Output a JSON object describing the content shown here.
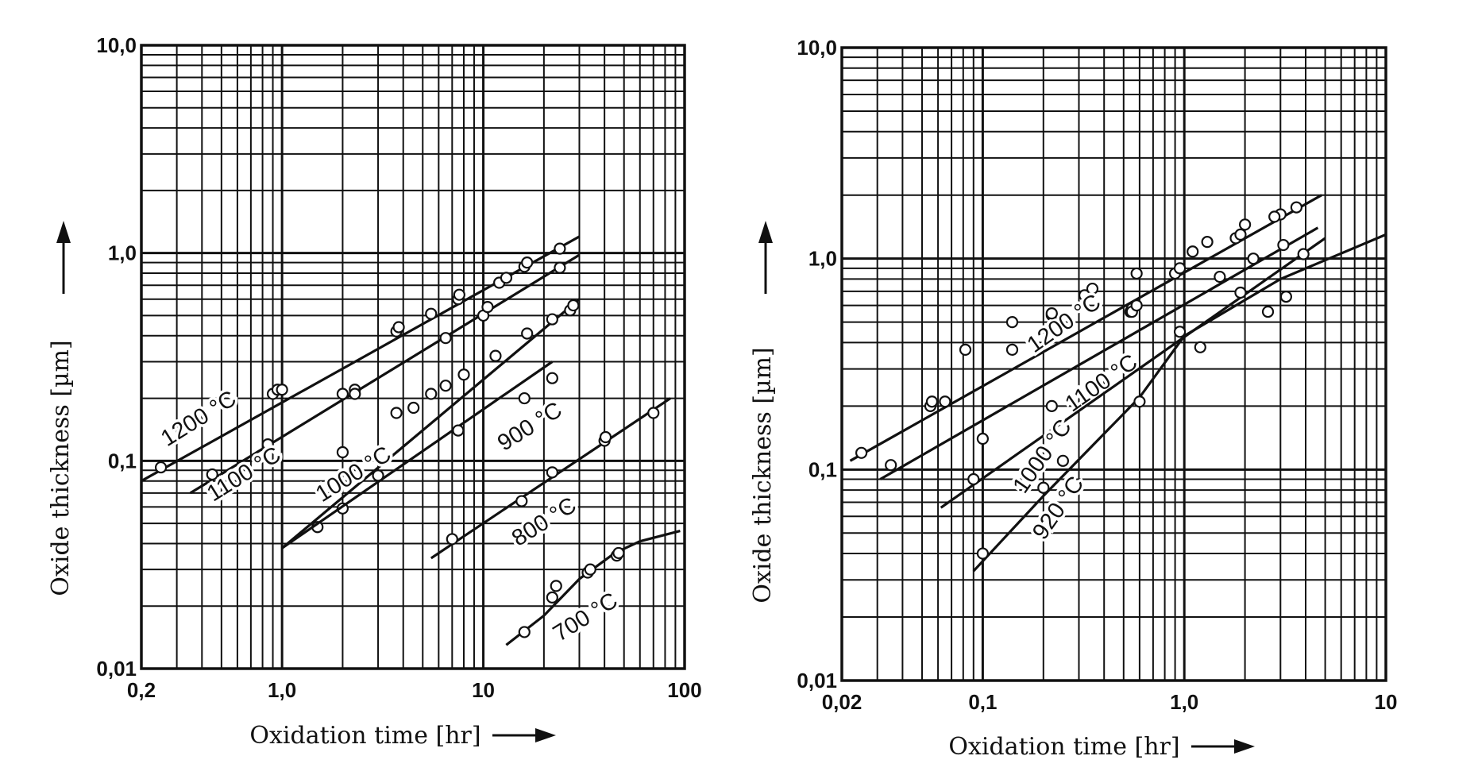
{
  "chart_data": [
    {
      "type": "line",
      "xscale": "log",
      "yscale": "log",
      "xlim": [
        0.2,
        100
      ],
      "ylim": [
        0.01,
        10
      ],
      "grid": true,
      "xlabel": "Oxidation time [hr]",
      "ylabel": "Oxide thickness [µm]",
      "xticks": [
        {
          "value": 0.2,
          "label": "0,2"
        },
        {
          "value": 1,
          "label": "1,0"
        },
        {
          "value": 10,
          "label": "10"
        },
        {
          "value": 100,
          "label": "100"
        }
      ],
      "yticks": [
        {
          "value": 0.01,
          "label": "0,01"
        },
        {
          "value": 0.1,
          "label": "0,1"
        },
        {
          "value": 1,
          "label": "1,0"
        },
        {
          "value": 10,
          "label": "10,0"
        }
      ],
      "series": [
        {
          "name": "1200 °C",
          "line": [
            [
              0.2,
              0.08
            ],
            [
              30,
              1.2
            ]
          ],
          "points": [
            [
              0.25,
              0.093
            ],
            [
              0.9,
              0.21
            ],
            [
              0.95,
              0.22
            ],
            [
              2.3,
              0.22
            ],
            [
              3.7,
              0.42
            ],
            [
              3.8,
              0.44
            ],
            [
              5.5,
              0.51
            ],
            [
              7.5,
              0.6
            ],
            [
              7.6,
              0.63
            ],
            [
              12,
              0.72
            ],
            [
              13,
              0.76
            ],
            [
              16,
              0.86
            ],
            [
              16.5,
              0.9
            ],
            [
              24,
              1.05
            ]
          ]
        },
        {
          "name": "1100 °C",
          "line": [
            [
              0.35,
              0.07
            ],
            [
              30,
              0.98
            ]
          ],
          "points": [
            [
              0.45,
              0.086
            ],
            [
              0.85,
              0.12
            ],
            [
              1.0,
              0.22
            ],
            [
              2.0,
              0.21
            ],
            [
              2.3,
              0.21
            ],
            [
              6.5,
              0.39
            ],
            [
              10,
              0.5
            ],
            [
              10.5,
              0.55
            ],
            [
              24,
              0.85
            ]
          ]
        },
        {
          "name": "1000 °C",
          "line": [
            [
              1.0,
              0.038
            ],
            [
              30,
              0.6
            ]
          ],
          "points": [
            [
              1.5,
              0.048
            ],
            [
              2.0,
              0.059
            ],
            [
              2.0,
              0.11
            ],
            [
              3.7,
              0.17
            ],
            [
              4.5,
              0.18
            ],
            [
              5.5,
              0.21
            ],
            [
              6.5,
              0.23
            ],
            [
              8.0,
              0.26
            ],
            [
              11.5,
              0.32
            ],
            [
              16.5,
              0.41
            ],
            [
              22,
              0.48
            ],
            [
              27,
              0.53
            ],
            [
              28,
              0.56
            ]
          ]
        },
        {
          "name": "900 °C",
          "line": [
            [
              1.0,
              0.038
            ],
            [
              22,
              0.3
            ]
          ],
          "points": [
            [
              3.0,
              0.085
            ],
            [
              7.5,
              0.14
            ],
            [
              16,
              0.2
            ],
            [
              22,
              0.25
            ]
          ]
        },
        {
          "name": "800 °C",
          "line": [
            [
              5.5,
              0.034
            ],
            [
              85,
              0.2
            ]
          ],
          "points": [
            [
              7.0,
              0.042
            ],
            [
              15.5,
              0.064
            ],
            [
              22,
              0.088
            ],
            [
              40,
              0.125
            ],
            [
              40.5,
              0.13
            ],
            [
              70,
              0.17
            ]
          ]
        },
        {
          "name": "700 °C",
          "line": [
            [
              13,
              0.013
            ],
            [
              20,
              0.018
            ],
            [
              30,
              0.027
            ],
            [
              45,
              0.036
            ],
            [
              60,
              0.041
            ],
            [
              95,
              0.046
            ]
          ],
          "points": [
            [
              16,
              0.015
            ],
            [
              22,
              0.022
            ],
            [
              23,
              0.025
            ],
            [
              33,
              0.029
            ],
            [
              34,
              0.03
            ],
            [
              46,
              0.035
            ],
            [
              47,
              0.036
            ]
          ]
        }
      ]
    },
    {
      "type": "line",
      "xscale": "log",
      "yscale": "log",
      "xlim": [
        0.02,
        10
      ],
      "ylim": [
        0.01,
        10
      ],
      "grid": true,
      "xlabel": "Oxidation time [hr]",
      "ylabel": "Oxide thickness [µm]",
      "xticks": [
        {
          "value": 0.02,
          "label": "0,02"
        },
        {
          "value": 0.1,
          "label": "0,1"
        },
        {
          "value": 1,
          "label": "1,0"
        },
        {
          "value": 10,
          "label": "10"
        }
      ],
      "yticks": [
        {
          "value": 0.01,
          "label": "0,01"
        },
        {
          "value": 0.1,
          "label": "0,1"
        },
        {
          "value": 1,
          "label": "1,0"
        },
        {
          "value": 10,
          "label": "10,0"
        }
      ],
      "series": [
        {
          "name": "1200 °C",
          "line": [
            [
              0.022,
              0.11
            ],
            [
              4.8,
              2.0
            ]
          ],
          "points": [
            [
              0.025,
              0.12
            ],
            [
              0.055,
              0.2
            ],
            [
              0.056,
              0.21
            ],
            [
              0.082,
              0.37
            ],
            [
              0.14,
              0.5
            ],
            [
              0.22,
              0.54
            ],
            [
              0.32,
              0.67
            ],
            [
              0.35,
              0.72
            ],
            [
              0.58,
              0.85
            ],
            [
              1.1,
              1.08
            ],
            [
              1.3,
              1.2
            ],
            [
              2.0,
              1.45
            ],
            [
              3.0,
              1.62
            ]
          ]
        },
        {
          "name": "1100 °C",
          "line": [
            [
              0.031,
              0.09
            ],
            [
              4.6,
              1.4
            ]
          ],
          "points": [
            [
              0.035,
              0.105
            ],
            [
              0.065,
              0.21
            ],
            [
              0.14,
              0.37
            ],
            [
              0.22,
              0.55
            ],
            [
              0.54,
              0.56
            ],
            [
              0.55,
              0.58
            ],
            [
              0.9,
              0.85
            ],
            [
              0.95,
              0.9
            ],
            [
              1.8,
              1.25
            ],
            [
              1.9,
              1.3
            ],
            [
              2.8,
              1.58
            ],
            [
              3.6,
              1.75
            ]
          ]
        },
        {
          "name": "1000 °C",
          "line": [
            [
              0.062,
              0.066
            ],
            [
              5.0,
              1.25
            ]
          ],
          "points": [
            [
              0.09,
              0.09
            ],
            [
              0.1,
              0.14
            ],
            [
              0.22,
              0.2
            ],
            [
              0.55,
              0.56
            ],
            [
              0.58,
              0.6
            ],
            [
              1.5,
              0.82
            ],
            [
              2.2,
              1.0
            ],
            [
              3.1,
              1.16
            ],
            [
              3.9,
              1.05
            ]
          ]
        },
        {
          "name": "920 °C",
          "line": [
            [
              0.09,
              0.033
            ],
            [
              0.2,
              0.075
            ],
            [
              0.6,
              0.22
            ],
            [
              1.0,
              0.43
            ],
            [
              3.0,
              0.8
            ],
            [
              10,
              1.3
            ]
          ],
          "points": [
            [
              0.1,
              0.04
            ],
            [
              0.2,
              0.082
            ],
            [
              0.25,
              0.11
            ],
            [
              0.6,
              0.21
            ],
            [
              0.95,
              0.45
            ],
            [
              1.2,
              0.38
            ],
            [
              1.9,
              0.69
            ],
            [
              2.6,
              0.56
            ],
            [
              3.2,
              0.66
            ]
          ]
        }
      ]
    }
  ]
}
